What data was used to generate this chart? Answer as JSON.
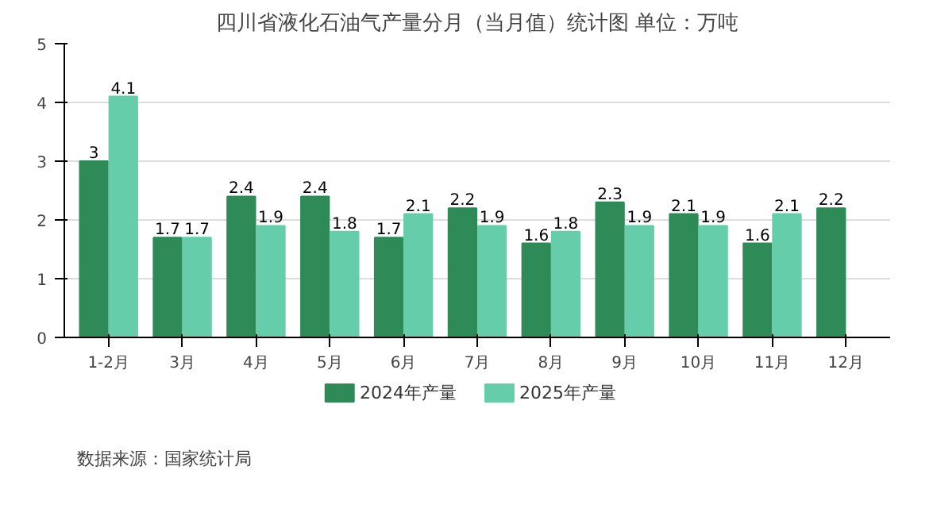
{
  "chart_data": {
    "type": "bar",
    "title": "四川省液化石油气产量分月（当月值）统计图 单位：万吨",
    "categories": [
      "1-2月",
      "3月",
      "4月",
      "5月",
      "6月",
      "7月",
      "8月",
      "9月",
      "10月",
      "11月",
      "12月"
    ],
    "series": [
      {
        "name": "2024年产量",
        "color": "#2e8b57",
        "values": [
          3,
          1.7,
          2.4,
          2.4,
          1.7,
          2.2,
          1.6,
          2.3,
          2.1,
          1.6,
          2.2
        ]
      },
      {
        "name": "2025年产量",
        "color": "#66cdaa",
        "values": [
          4.1,
          1.7,
          1.9,
          1.8,
          2.1,
          1.9,
          1.8,
          1.9,
          1.9,
          2.1,
          null
        ]
      }
    ],
    "ylim": [
      0,
      5
    ],
    "yticks": [
      0,
      1,
      2,
      3,
      4,
      5
    ],
    "grid": "y",
    "legend": "bottom",
    "data_labels": true,
    "annotations": [
      "数据来源：国家统计局"
    ]
  }
}
